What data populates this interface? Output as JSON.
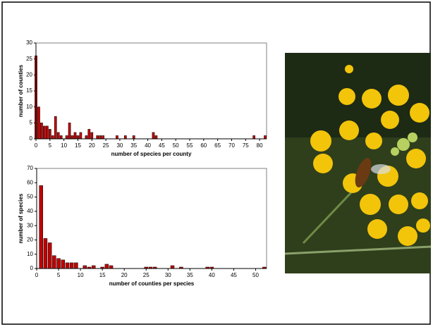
{
  "chart_data": [
    {
      "type": "bar",
      "xlabel": "number of species per county",
      "ylabel": "number of counties",
      "x": [
        0,
        1,
        2,
        3,
        4,
        5,
        6,
        7,
        8,
        9,
        11,
        12,
        13,
        14,
        15,
        16,
        18,
        19,
        20,
        22,
        23,
        24,
        29,
        32,
        35,
        42,
        43,
        78,
        82
      ],
      "values": [
        26,
        10,
        5,
        4,
        4,
        3,
        1,
        7,
        2,
        1,
        1,
        5,
        1,
        2,
        1,
        2,
        1,
        3,
        2,
        1,
        1,
        1,
        1,
        1,
        1,
        2,
        1,
        1,
        1
      ],
      "color": "#c00000",
      "xlim": [
        0,
        82.5
      ],
      "xticks": [
        0,
        5,
        10,
        15,
        20,
        25,
        30,
        35,
        40,
        45,
        50,
        55,
        60,
        65,
        70,
        75,
        80
      ],
      "ylim": [
        0,
        30
      ],
      "yticks": [
        0,
        5,
        10,
        15,
        20,
        25,
        30
      ]
    },
    {
      "type": "bar",
      "xlabel": "number of counties per species",
      "ylabel": "number of species",
      "x": [
        1,
        2,
        3,
        4,
        5,
        6,
        7,
        8,
        9,
        11,
        12,
        13,
        15,
        16,
        17,
        25,
        26,
        27,
        31,
        33,
        39,
        40,
        52
      ],
      "values": [
        58,
        21,
        18,
        9,
        7,
        6,
        4,
        4,
        4,
        2,
        1,
        2,
        1,
        3,
        2,
        1,
        1,
        1,
        2,
        1,
        1,
        1,
        1
      ],
      "color": "#c00000",
      "xlim": [
        0,
        52.5
      ],
      "xticks": [
        0,
        5,
        10,
        15,
        20,
        25,
        30,
        35,
        40,
        45,
        50
      ],
      "ylim": [
        0,
        70
      ],
      "yticks": [
        0,
        10,
        20,
        30,
        40,
        50,
        60,
        70
      ]
    }
  ]
}
